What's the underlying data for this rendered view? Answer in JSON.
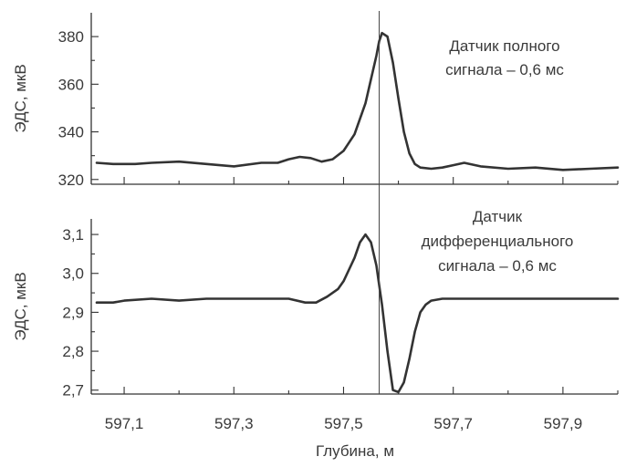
{
  "chart_data": [
    {
      "type": "line",
      "ylabel": "ЭДС, мкВ",
      "annotation": [
        "Датчик полного",
        "сигнала – 0,6 мс"
      ],
      "ylim": [
        318,
        390
      ],
      "yticks": [
        320,
        340,
        360,
        380
      ],
      "ytick_labels": [
        "320",
        "340",
        "360",
        "380"
      ],
      "series": [
        {
          "x": [
            597.05,
            597.08,
            597.12,
            597.15,
            597.2,
            597.25,
            597.3,
            597.35,
            597.38,
            597.4,
            597.42,
            597.44,
            597.46,
            597.48,
            597.5,
            597.52,
            597.54,
            597.55,
            597.56,
            597.565,
            597.57,
            597.58,
            597.59,
            597.6,
            597.61,
            597.62,
            597.63,
            597.64,
            597.66,
            597.68,
            597.7,
            597.72,
            597.75,
            597.8,
            597.85,
            597.9,
            597.95,
            598.0
          ],
          "y": [
            327,
            326.5,
            326.5,
            327,
            327.5,
            326.5,
            325.5,
            327,
            327,
            328.5,
            329.5,
            329,
            327.5,
            328.5,
            332,
            339,
            352,
            362,
            372,
            378,
            381.5,
            380,
            369,
            354,
            340,
            331,
            326.5,
            325,
            324.5,
            325,
            326,
            327,
            325.5,
            324.5,
            325,
            324,
            324.5,
            325
          ]
        }
      ]
    },
    {
      "type": "line",
      "ylabel": "ЭДС, мкВ",
      "xlabel": "Глубина, м",
      "annotation": [
        "Датчик",
        "дифференциального",
        "сигнала – 0,6 мс"
      ],
      "ylim": [
        2.69,
        3.14
      ],
      "yticks": [
        2.7,
        2.8,
        2.9,
        3.0,
        3.1
      ],
      "ytick_labels": [
        "2,7",
        "2,8",
        "2,9",
        "3,0",
        "3,1"
      ],
      "xlim": [
        597.04,
        598.0
      ],
      "xticks": [
        597.1,
        597.3,
        597.5,
        597.7,
        597.9
      ],
      "xtick_labels": [
        "597,1",
        "597,3",
        "597,5",
        "597,7",
        "597,9"
      ],
      "series": [
        {
          "x": [
            597.05,
            597.08,
            597.1,
            597.15,
            597.2,
            597.25,
            597.3,
            597.35,
            597.4,
            597.43,
            597.45,
            597.47,
            597.49,
            597.5,
            597.51,
            597.52,
            597.53,
            597.54,
            597.55,
            597.56,
            597.565,
            597.57,
            597.58,
            597.59,
            597.6,
            597.61,
            597.62,
            597.63,
            597.64,
            597.65,
            597.66,
            597.68,
            597.7,
            597.75,
            597.8,
            597.85,
            597.9,
            597.95,
            598.0
          ],
          "y": [
            2.925,
            2.925,
            2.93,
            2.935,
            2.93,
            2.935,
            2.935,
            2.935,
            2.935,
            2.925,
            2.925,
            2.94,
            2.96,
            2.98,
            3.01,
            3.04,
            3.08,
            3.1,
            3.08,
            3.02,
            2.97,
            2.92,
            2.8,
            2.7,
            2.695,
            2.72,
            2.78,
            2.85,
            2.9,
            2.92,
            2.93,
            2.935,
            2.935,
            2.935,
            2.935,
            2.935,
            2.935,
            2.935,
            2.935
          ]
        }
      ]
    }
  ],
  "marker_x": 597.565
}
